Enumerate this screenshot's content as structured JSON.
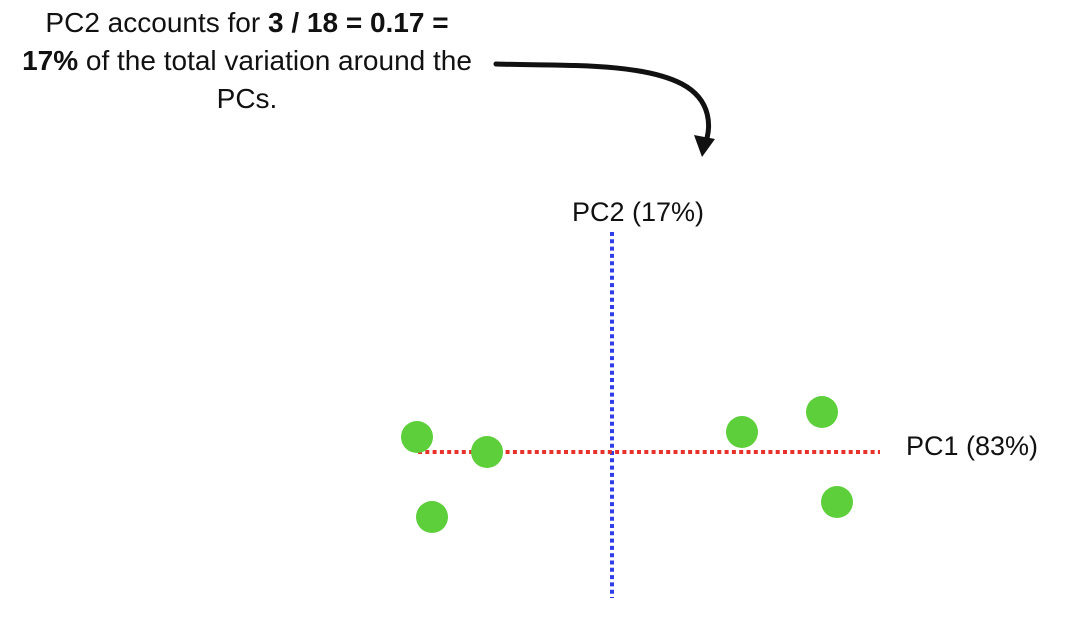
{
  "caption": {
    "part1": "PC2 accounts for ",
    "bold1": "3 / 18 = 0.17 =",
    "bold2": "17%",
    "part2": " of the total variation around the PCs."
  },
  "axes": {
    "pc1_label": "PC1 (83%)",
    "pc2_label": "PC2 (17%)",
    "pc1_color": "#e8312b",
    "pc2_color": "#2f3ee8",
    "point_color": "#5ccf3a",
    "arrow_color": "#111111"
  },
  "points": [
    {
      "pc1": -3.9,
      "pc2": 0.3
    },
    {
      "pc1": -2.5,
      "pc2": 0.0
    },
    {
      "pc1": -3.6,
      "pc2": -1.3
    },
    {
      "pc1": 2.6,
      "pc2": 0.4
    },
    {
      "pc1": 4.2,
      "pc2": 0.8
    },
    {
      "pc1": 4.5,
      "pc2": -1.0
    }
  ]
}
